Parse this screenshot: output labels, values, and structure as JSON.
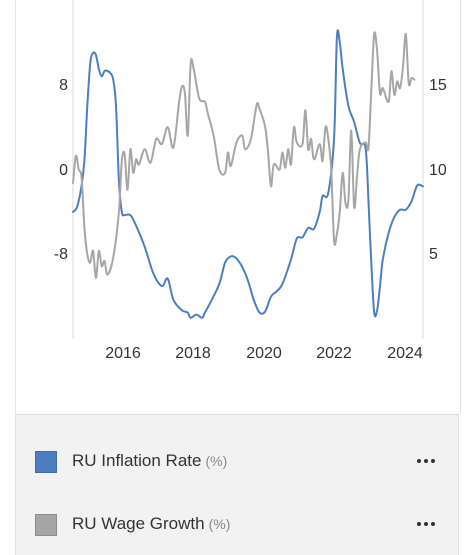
{
  "colors": {
    "inflation": "#4b7fbf",
    "wage": "#a6a6a6",
    "axis": "#d9d9d9"
  },
  "chart_data": {
    "type": "line",
    "x_ticks": [
      "2016",
      "2018",
      "2020",
      "2022",
      "2024"
    ],
    "xlim": [
      "2014-08",
      "2024-10"
    ],
    "left_axis": {
      "ticks": [
        "8",
        "0",
        "-8"
      ],
      "range": [
        -16,
        16
      ]
    },
    "right_axis": {
      "ticks": [
        "15",
        "10",
        "5"
      ],
      "range": [
        0,
        20
      ]
    },
    "grid": false,
    "legend_position": "bottom",
    "series": [
      {
        "name": "RU Inflation Rate",
        "unit": "(%)",
        "axis": "left",
        "color": "#4b7fbf",
        "points": [
          [
            "2014-08-01",
            -4.0
          ],
          [
            "2014-09-15",
            -3.5
          ],
          [
            "2014-11-01",
            -1.5
          ],
          [
            "2014-12-01",
            1.0
          ],
          [
            "2015-01-01",
            6.0
          ],
          [
            "2015-02-01",
            10.0
          ],
          [
            "2015-03-01",
            11.0
          ],
          [
            "2015-04-01",
            10.8
          ],
          [
            "2015-05-01",
            9.5
          ],
          [
            "2015-06-01",
            8.8
          ],
          [
            "2015-07-01",
            9.3
          ],
          [
            "2015-08-01",
            9.3
          ],
          [
            "2015-09-01",
            9.1
          ],
          [
            "2015-10-01",
            8.5
          ],
          [
            "2015-11-01",
            6.0
          ],
          [
            "2015-12-01",
            -1.0
          ],
          [
            "2016-01-01",
            -4.0
          ],
          [
            "2016-02-01",
            -4.3
          ],
          [
            "2016-04-01",
            -4.3
          ],
          [
            "2016-06-01",
            -5.3
          ],
          [
            "2016-09-01",
            -7.3
          ],
          [
            "2016-12-01",
            -9.8
          ],
          [
            "2017-03-01",
            -11.0
          ],
          [
            "2017-05-01",
            -10.3
          ],
          [
            "2017-07-01",
            -12.3
          ],
          [
            "2017-10-01",
            -13.3
          ],
          [
            "2017-12-01",
            -13.5
          ],
          [
            "2018-01-01",
            -14.0
          ],
          [
            "2018-03-01",
            -13.7
          ],
          [
            "2018-05-01",
            -14.0
          ],
          [
            "2018-06-01",
            -13.5
          ],
          [
            "2018-08-01",
            -12.5
          ],
          [
            "2018-11-01",
            -10.8
          ],
          [
            "2019-01-01",
            -8.8
          ],
          [
            "2019-03-01",
            -8.2
          ],
          [
            "2019-05-01",
            -8.4
          ],
          [
            "2019-07-01",
            -9.2
          ],
          [
            "2019-09-01",
            -10.5
          ],
          [
            "2019-11-01",
            -12.3
          ],
          [
            "2020-01-01",
            -13.5
          ],
          [
            "2020-03-01",
            -13.4
          ],
          [
            "2020-05-01",
            -12.0
          ],
          [
            "2020-07-01",
            -11.5
          ],
          [
            "2020-09-01",
            -10.8
          ],
          [
            "2020-12-01",
            -8.5
          ],
          [
            "2021-02-01",
            -6.5
          ],
          [
            "2021-04-01",
            -6.4
          ],
          [
            "2021-06-01",
            -5.5
          ],
          [
            "2021-08-01",
            -5.6
          ],
          [
            "2021-10-01",
            -4.0
          ],
          [
            "2021-11-01",
            -2.5
          ],
          [
            "2022-01-01",
            -2.2
          ],
          [
            "2022-03-01",
            3.0
          ],
          [
            "2022-04-01",
            12.5
          ],
          [
            "2022-05-01",
            12.0
          ],
          [
            "2022-06-01",
            9.5
          ],
          [
            "2022-08-01",
            6.0
          ],
          [
            "2022-10-01",
            4.5
          ],
          [
            "2022-12-01",
            2.5
          ],
          [
            "2023-02-01",
            2.0
          ],
          [
            "2023-03-01",
            -3.0
          ],
          [
            "2023-04-01",
            -9.0
          ],
          [
            "2023-05-01",
            -13.5
          ],
          [
            "2023-06-01",
            -13.3
          ],
          [
            "2023-07-01",
            -11.0
          ],
          [
            "2023-08-01",
            -8.5
          ],
          [
            "2023-10-01",
            -6.0
          ],
          [
            "2023-12-01",
            -4.5
          ],
          [
            "2024-02-01",
            -3.8
          ],
          [
            "2024-04-01",
            -3.8
          ],
          [
            "2024-06-01",
            -3.0
          ],
          [
            "2024-08-01",
            -1.5
          ],
          [
            "2024-10-01",
            -1.6
          ]
        ]
      },
      {
        "name": "RU Wage Growth",
        "unit": "(%)",
        "axis": "right",
        "color": "#a6a6a6",
        "points": [
          [
            "2014-08-01",
            9.2
          ],
          [
            "2014-09-01",
            10.8
          ],
          [
            "2014-10-01",
            10.0
          ],
          [
            "2014-11-01",
            9.5
          ],
          [
            "2014-12-01",
            6.5
          ],
          [
            "2015-01-01",
            5.0
          ],
          [
            "2015-02-01",
            4.5
          ],
          [
            "2015-03-01",
            5.2
          ],
          [
            "2015-04-01",
            3.6
          ],
          [
            "2015-05-01",
            5.2
          ],
          [
            "2015-06-01",
            4.3
          ],
          [
            "2015-07-01",
            4.6
          ],
          [
            "2015-08-01",
            3.8
          ],
          [
            "2015-10-01",
            4.8
          ],
          [
            "2015-12-01",
            7.5
          ],
          [
            "2016-01-01",
            10.5
          ],
          [
            "2016-02-01",
            10.9
          ],
          [
            "2016-03-01",
            8.8
          ],
          [
            "2016-04-01",
            11.2
          ],
          [
            "2016-05-01",
            9.8
          ],
          [
            "2016-06-01",
            10.6
          ],
          [
            "2016-07-01",
            10.3
          ],
          [
            "2016-09-01",
            11.2
          ],
          [
            "2016-11-01",
            10.4
          ],
          [
            "2017-01-01",
            11.8
          ],
          [
            "2017-03-01",
            11.5
          ],
          [
            "2017-05-01",
            12.5
          ],
          [
            "2017-07-01",
            11.3
          ],
          [
            "2017-09-01",
            14.0
          ],
          [
            "2017-10-01",
            14.9
          ],
          [
            "2017-11-01",
            14.5
          ],
          [
            "2017-12-01",
            12.0
          ],
          [
            "2018-01-01",
            16.2
          ],
          [
            "2018-02-01",
            16.0
          ],
          [
            "2018-04-01",
            14.2
          ],
          [
            "2018-06-01",
            14.0
          ],
          [
            "2018-07-01",
            13.3
          ],
          [
            "2018-09-01",
            12.0
          ],
          [
            "2018-11-01",
            10.0
          ],
          [
            "2019-01-01",
            9.8
          ],
          [
            "2019-02-01",
            11.0
          ],
          [
            "2019-03-01",
            10.2
          ],
          [
            "2019-05-01",
            11.6
          ],
          [
            "2019-07-01",
            12.0
          ],
          [
            "2019-08-01",
            11.2
          ],
          [
            "2019-10-01",
            11.8
          ],
          [
            "2019-12-01",
            13.8
          ],
          [
            "2020-01-01",
            13.6
          ],
          [
            "2020-03-01",
            12.5
          ],
          [
            "2020-04-01",
            11.0
          ],
          [
            "2020-05-01",
            9.0
          ],
          [
            "2020-06-01",
            10.3
          ],
          [
            "2020-08-01",
            10.0
          ],
          [
            "2020-09-01",
            11.0
          ],
          [
            "2020-10-01",
            10.1
          ],
          [
            "2020-11-01",
            11.2
          ],
          [
            "2020-12-01",
            10.3
          ],
          [
            "2021-01-01",
            12.5
          ],
          [
            "2021-02-01",
            11.6
          ],
          [
            "2021-04-01",
            11.5
          ],
          [
            "2021-05-01",
            13.5
          ],
          [
            "2021-06-01",
            11.2
          ],
          [
            "2021-07-01",
            11.8
          ],
          [
            "2021-08-01",
            10.6
          ],
          [
            "2021-10-01",
            11.5
          ],
          [
            "2021-11-01",
            10.5
          ],
          [
            "2021-12-01",
            12.5
          ],
          [
            "2022-01-01",
            11.8
          ],
          [
            "2022-02-01",
            10.0
          ],
          [
            "2022-03-01",
            5.8
          ],
          [
            "2022-04-01",
            6.2
          ],
          [
            "2022-05-01",
            7.5
          ],
          [
            "2022-06-01",
            9.8
          ],
          [
            "2022-07-01",
            8.0
          ],
          [
            "2022-08-01",
            8.2
          ],
          [
            "2022-09-01",
            12.3
          ],
          [
            "2022-10-01",
            7.8
          ],
          [
            "2022-11-01",
            9.6
          ],
          [
            "2022-12-01",
            11.2
          ],
          [
            "2023-02-01",
            11.6
          ],
          [
            "2023-03-01",
            11.3
          ],
          [
            "2023-04-01",
            14.8
          ],
          [
            "2023-05-01",
            18.0
          ],
          [
            "2023-06-01",
            17.0
          ],
          [
            "2023-07-01",
            14.5
          ],
          [
            "2023-08-01",
            14.8
          ],
          [
            "2023-10-01",
            14.0
          ],
          [
            "2023-11-01",
            15.8
          ],
          [
            "2023-12-01",
            14.4
          ],
          [
            "2024-01-01",
            15.2
          ],
          [
            "2024-02-01",
            14.8
          ],
          [
            "2024-03-01",
            16.0
          ],
          [
            "2024-04-01",
            18.0
          ],
          [
            "2024-05-01",
            15.1
          ],
          [
            "2024-06-01",
            15.4
          ],
          [
            "2024-07-01",
            15.3
          ]
        ]
      }
    ]
  },
  "legend": {
    "items": [
      {
        "label": "RU Inflation Rate",
        "unit": "(%)",
        "color": "#4b7fbf"
      },
      {
        "label": "RU Wage Growth",
        "unit": "(%)",
        "color": "#a6a6a6"
      }
    ]
  }
}
